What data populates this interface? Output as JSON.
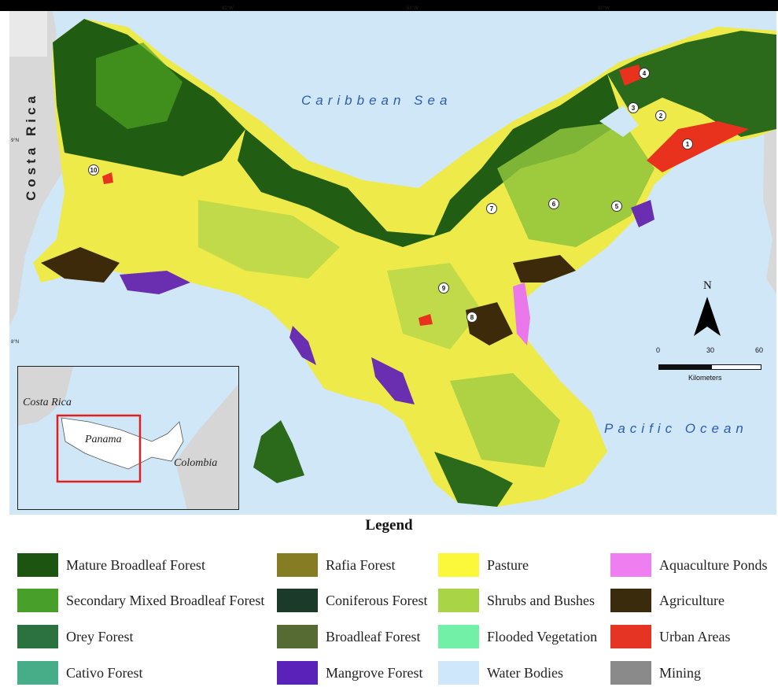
{
  "map": {
    "sea_north": "Caribbean Sea",
    "sea_south": "Pacific Ocean",
    "country_west": "Costa Rica",
    "longitudes": [
      "82°W",
      "81°W",
      "80°W"
    ],
    "latitudes": [
      "9°N",
      "8°N"
    ],
    "markers": [
      "1",
      "2",
      "3",
      "4",
      "5",
      "6",
      "7",
      "8",
      "9",
      "10"
    ],
    "north_label": "N",
    "scale": {
      "ticks": [
        "0",
        "30",
        "60"
      ],
      "unit": "Kilometers"
    },
    "colors": {
      "sea": "#cfe7f7",
      "land_grey": "#d8d8d8",
      "mature": "#1f5a12",
      "secondary": "#4ea421",
      "pasture": "#f3f04a",
      "shrubs": "#b5d64a",
      "mangrove": "#6a2fb0",
      "agriculture": "#3d2a0a",
      "urban": "#e8321e",
      "aquaculture": "#ea78ea"
    }
  },
  "inset": {
    "label_costa_rica": "Costa Rica",
    "label_panama": "Panama",
    "label_colombia": "Colombia",
    "highlight_color": "#e02020"
  },
  "legend": {
    "title": "Legend",
    "items": [
      {
        "label": "Mature Broadleaf Forest",
        "color": "#1e5411"
      },
      {
        "label": "Secondary Mixed Broadleaf Forest",
        "color": "#48a02a"
      },
      {
        "label": "Orey Forest",
        "color": "#2c7140"
      },
      {
        "label": "Cativo Forest",
        "color": "#47ac88"
      },
      {
        "label": "Rafia Forest",
        "color": "#857c23"
      },
      {
        "label": "Coniferous Forest",
        "color": "#1c3a2a"
      },
      {
        "label": "Broadleaf Forest",
        "color": "#566a33"
      },
      {
        "label": "Mangrove Forest",
        "color": "#5a22b8"
      },
      {
        "label": "Pasture",
        "color": "#fbf83c"
      },
      {
        "label": "Shrubs and Bushes",
        "color": "#a9d446"
      },
      {
        "label": "Flooded Vegetation",
        "color": "#72f0a8"
      },
      {
        "label": "Water Bodies",
        "color": "#cfe7fa"
      },
      {
        "label": "Aquaculture Ponds",
        "color": "#ef7ff0"
      },
      {
        "label": "Agriculture",
        "color": "#3b2b0d"
      },
      {
        "label": "Urban Areas",
        "color": "#e53424"
      },
      {
        "label": "Mining",
        "color": "#8a8a8a"
      }
    ]
  }
}
